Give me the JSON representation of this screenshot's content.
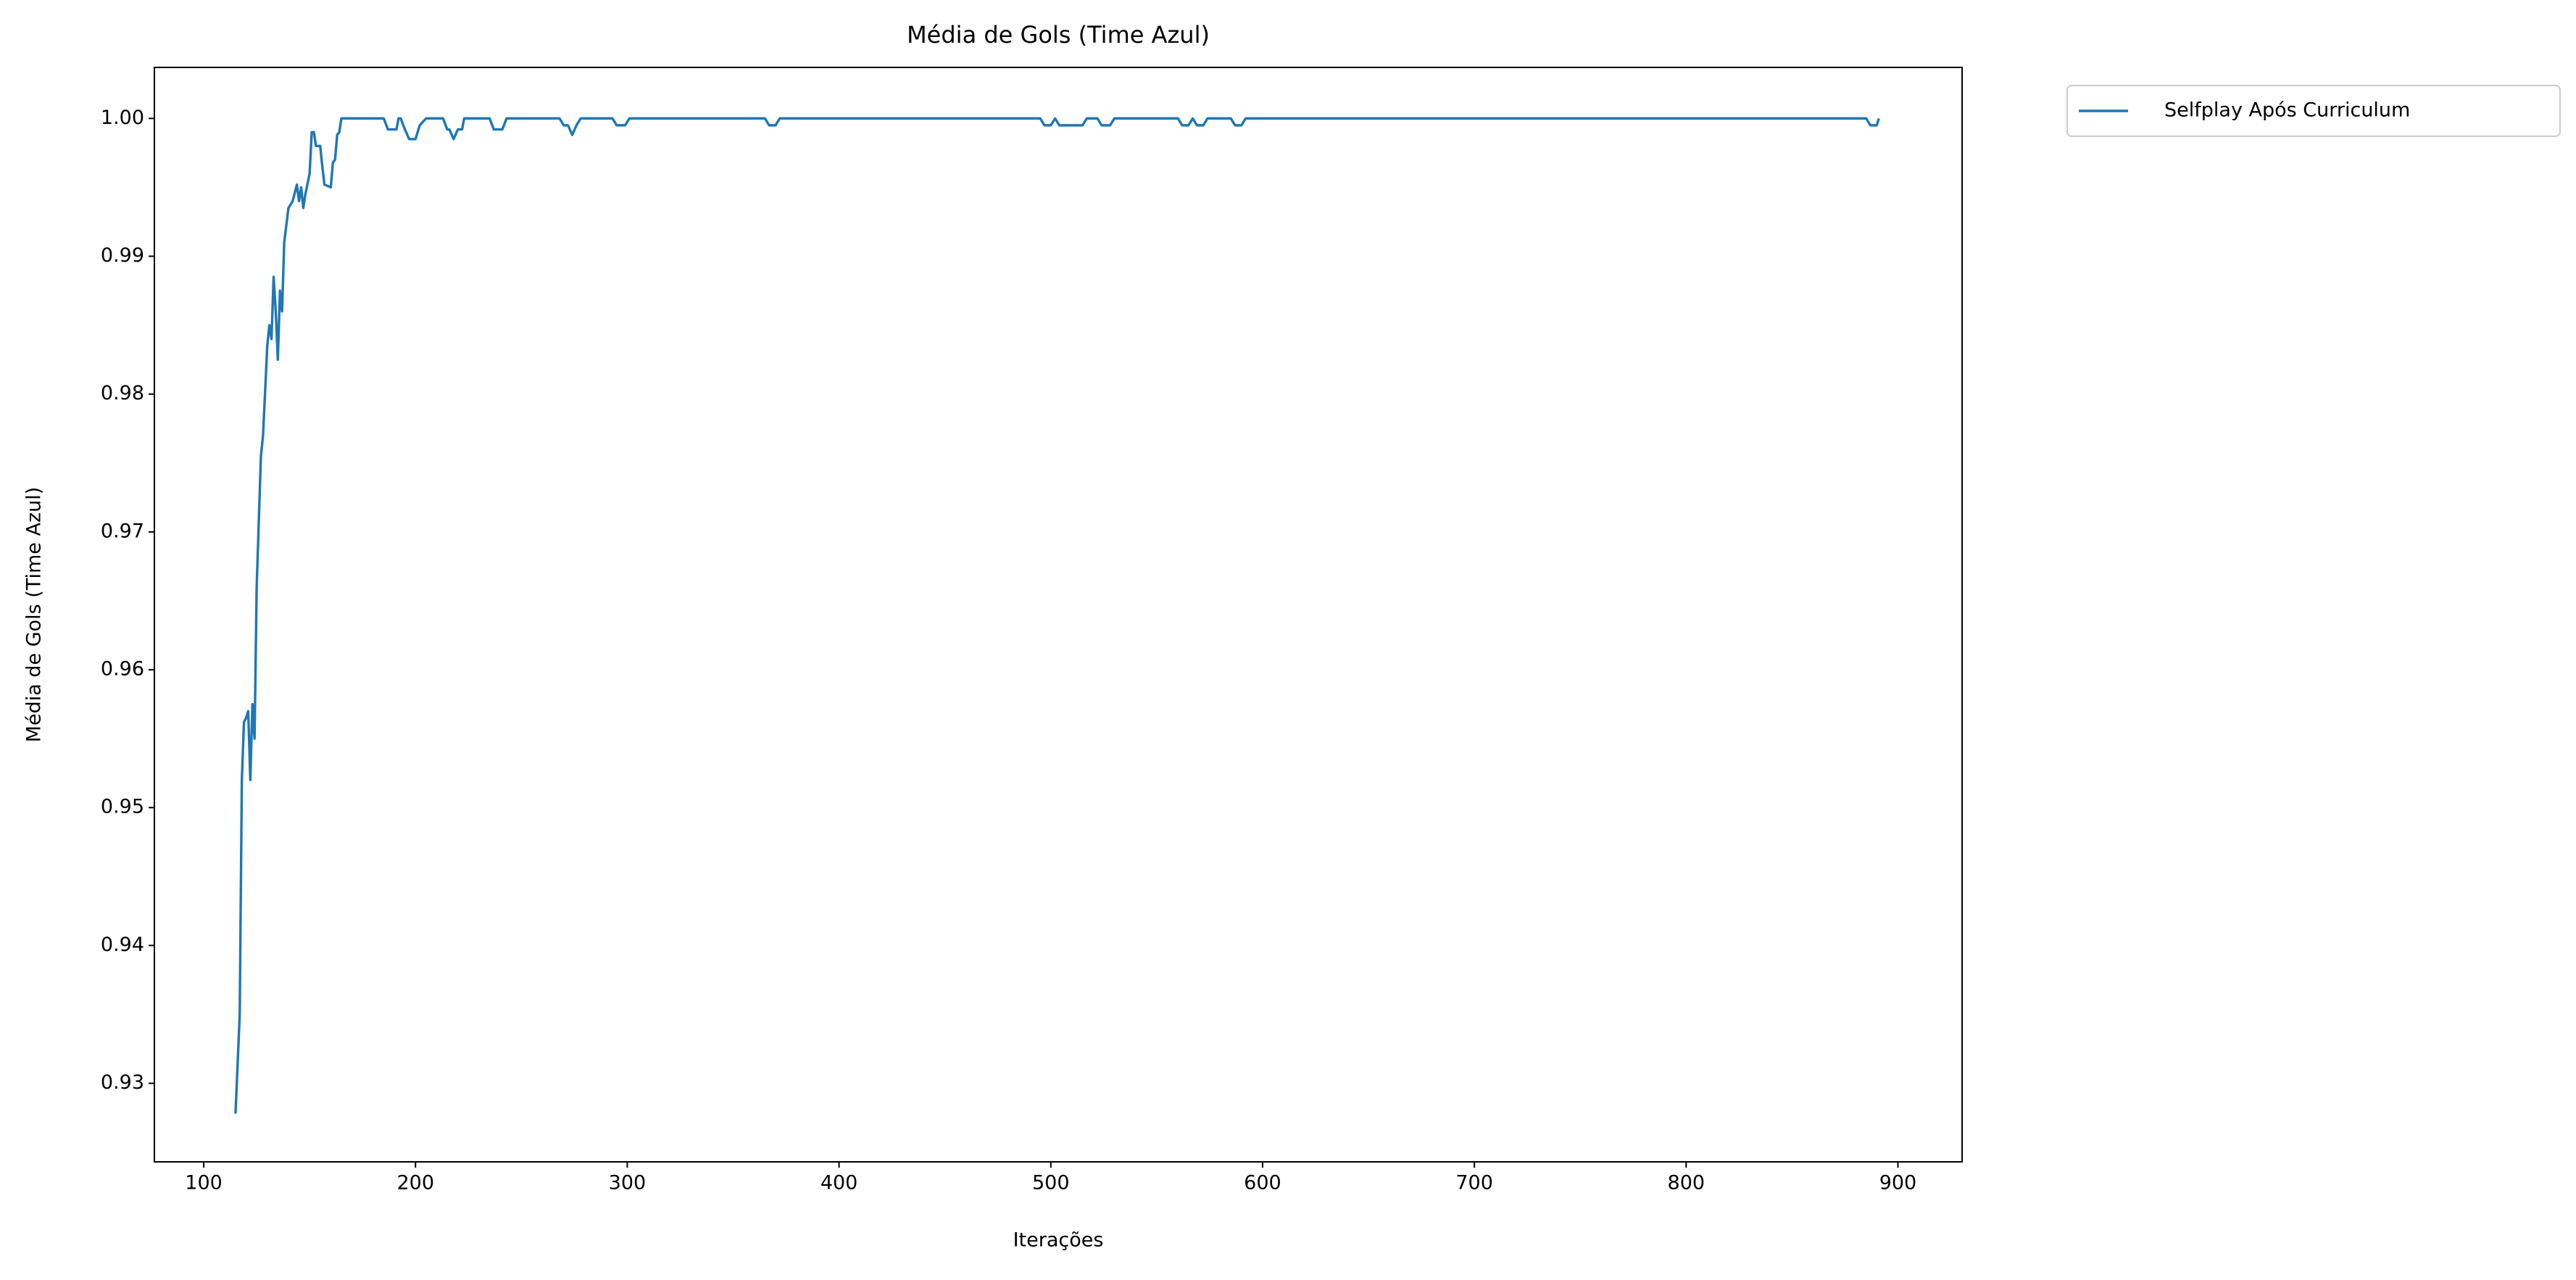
{
  "chart_data": {
    "type": "line",
    "title": "Média de Gols (Time Azul)",
    "xlabel": "Iterações",
    "ylabel": "Média de Gols (Time Azul)",
    "legend": "upper right outside",
    "grid": false,
    "xlim": [
      76.7,
      930.3
    ],
    "ylim": [
      0.9243,
      1.0037
    ],
    "xticks": [
      100,
      200,
      300,
      400,
      500,
      600,
      700,
      800,
      900
    ],
    "yticks": [
      0.93,
      0.94,
      0.95,
      0.96,
      0.97,
      0.98,
      0.99,
      {
        "value": 1,
        "label": "1.00"
      }
    ],
    "x": [
      115,
      117,
      118,
      119,
      120,
      121,
      122,
      123,
      124,
      125,
      127,
      128,
      130,
      131,
      132,
      133,
      134,
      135,
      136,
      137,
      138,
      140,
      142,
      144,
      145,
      146,
      147,
      148,
      150,
      151,
      152,
      153,
      155,
      156,
      157,
      160,
      161,
      162,
      163,
      164,
      165,
      185,
      187,
      191,
      192,
      193,
      195,
      197,
      200,
      202,
      205,
      213,
      215,
      216,
      218,
      220,
      222,
      223,
      235,
      237,
      241,
      243,
      268,
      270,
      272,
      274,
      276,
      278,
      293,
      295,
      299,
      301,
      365,
      367,
      370,
      372,
      495,
      497,
      500,
      502,
      504,
      515,
      517,
      522,
      524,
      528,
      530,
      560,
      562,
      565,
      567,
      569,
      572,
      574,
      585,
      587,
      590,
      592,
      885,
      887,
      890,
      891
    ],
    "series": [
      {
        "name": "Selfplay Após Curriculum",
        "color": "#1f77b4",
        "values": [
          0.9278,
          0.935,
          0.952,
          0.9562,
          0.9565,
          0.957,
          0.952,
          0.9575,
          0.955,
          0.966,
          0.9755,
          0.977,
          0.9835,
          0.985,
          0.984,
          0.9885,
          0.986,
          0.9825,
          0.9875,
          0.986,
          0.991,
          0.9935,
          0.994,
          0.9952,
          0.994,
          0.995,
          0.9935,
          0.9945,
          0.996,
          0.999,
          0.999,
          0.998,
          0.998,
          0.9965,
          0.9952,
          0.995,
          0.9968,
          0.997,
          0.9988,
          0.999,
          1.0,
          1.0,
          0.9992,
          0.9992,
          1.0,
          1.0,
          0.9992,
          0.9985,
          0.9985,
          0.9995,
          1.0,
          1.0,
          0.9992,
          0.9992,
          0.9985,
          0.9992,
          0.9992,
          1.0,
          1.0,
          0.9992,
          0.9992,
          1.0,
          1.0,
          0.9995,
          0.9995,
          0.9988,
          0.9995,
          1.0,
          1.0,
          0.9995,
          0.9995,
          1.0,
          1.0,
          0.9995,
          0.9995,
          1.0,
          1.0,
          0.9995,
          0.9995,
          1.0,
          0.9995,
          0.9995,
          1.0,
          1.0,
          0.9995,
          0.9995,
          1.0,
          1.0,
          0.9995,
          0.9995,
          1.0,
          0.9995,
          0.9995,
          1.0,
          1.0,
          0.9995,
          0.9995,
          1.0,
          1.0,
          0.9995,
          0.9995,
          1.0
        ]
      }
    ]
  }
}
